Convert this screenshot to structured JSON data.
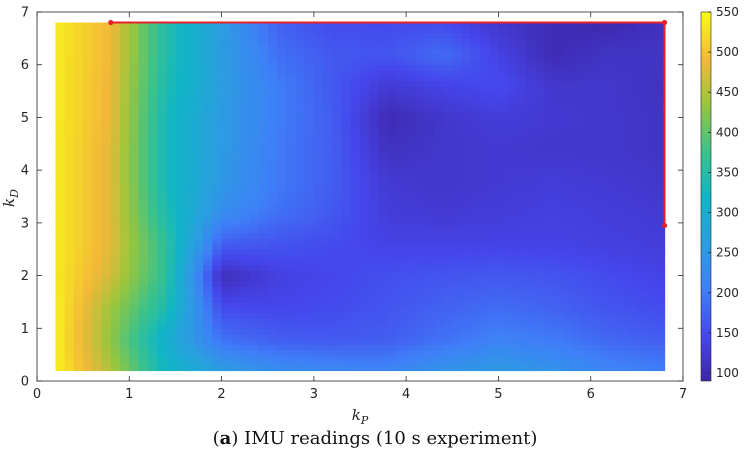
{
  "chart_data": {
    "type": "heatmap",
    "xlabel_base": "k",
    "xlabel_sub": "P",
    "ylabel_base": "k",
    "ylabel_sub": "D",
    "xlim": [
      0,
      7
    ],
    "ylim": [
      0,
      7
    ],
    "x_ticks": [
      0,
      1,
      2,
      3,
      4,
      5,
      6,
      7
    ],
    "y_ticks": [
      0,
      1,
      2,
      3,
      4,
      5,
      6,
      7
    ],
    "x": [
      0.2,
      0.8,
      1.4,
      2.0,
      2.6,
      3.2,
      3.8,
      4.4,
      5.0,
      5.6,
      6.2,
      6.8
    ],
    "y": [
      0.2,
      0.8,
      1.4,
      2.0,
      2.6,
      3.2,
      3.8,
      4.4,
      5.0,
      5.6,
      6.2,
      6.8
    ],
    "z": [
      [
        540,
        450,
        320,
        260,
        230,
        220,
        215,
        240,
        255,
        240,
        215,
        205
      ],
      [
        540,
        430,
        300,
        190,
        170,
        165,
        170,
        190,
        210,
        200,
        180,
        170
      ],
      [
        540,
        440,
        340,
        150,
        145,
        150,
        160,
        175,
        185,
        175,
        160,
        150
      ],
      [
        535,
        470,
        360,
        105,
        135,
        145,
        155,
        160,
        165,
        160,
        150,
        140
      ],
      [
        535,
        480,
        360,
        170,
        160,
        150,
        140,
        140,
        140,
        140,
        135,
        130
      ],
      [
        535,
        480,
        340,
        230,
        190,
        165,
        130,
        125,
        130,
        135,
        130,
        125
      ],
      [
        535,
        480,
        330,
        250,
        200,
        170,
        125,
        120,
        125,
        130,
        125,
        120
      ],
      [
        535,
        480,
        330,
        255,
        200,
        170,
        110,
        120,
        125,
        120,
        120,
        115
      ],
      [
        535,
        485,
        330,
        255,
        205,
        170,
        100,
        120,
        130,
        125,
        120,
        115
      ],
      [
        535,
        485,
        340,
        260,
        205,
        165,
        125,
        140,
        150,
        120,
        120,
        110
      ],
      [
        535,
        490,
        345,
        260,
        190,
        165,
        160,
        185,
        140,
        100,
        115,
        115
      ],
      [
        535,
        490,
        345,
        260,
        175,
        150,
        150,
        150,
        120,
        100,
        95,
        110
      ]
    ],
    "colorbar": {
      "min": 90,
      "max": 550,
      "ticks": [
        100,
        150,
        200,
        250,
        300,
        350,
        400,
        450,
        500,
        550
      ]
    },
    "path": {
      "color": "#e8202a",
      "points": [
        [
          0.8,
          6.8
        ],
        [
          6.8,
          6.8
        ],
        [
          6.8,
          2.95
        ]
      ]
    }
  },
  "caption": {
    "label": "a",
    "text": "IMU readings (10 s experiment)"
  }
}
